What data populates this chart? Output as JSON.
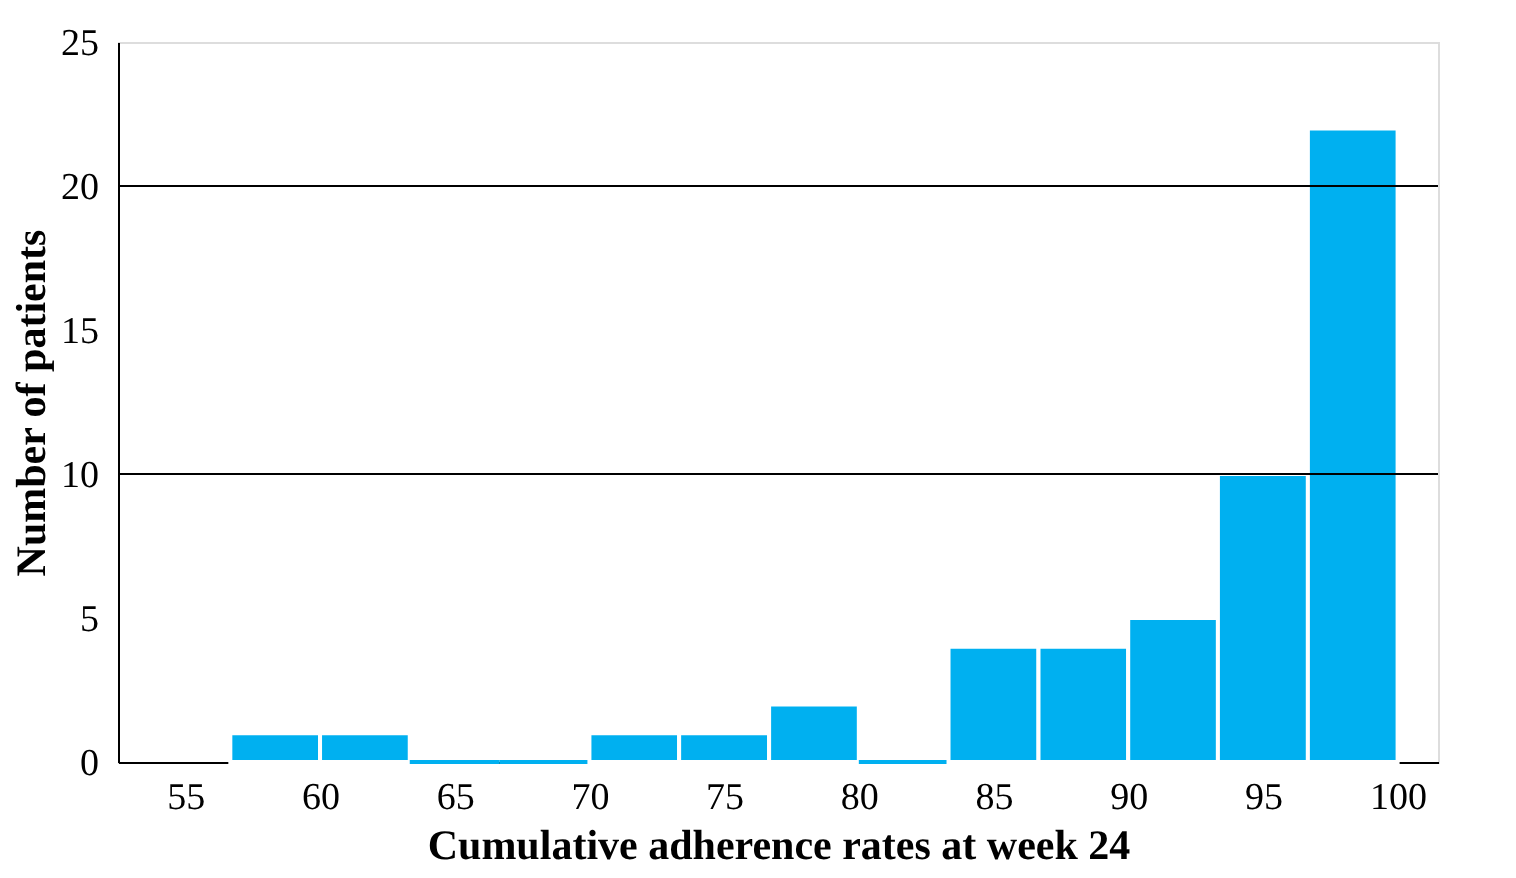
{
  "chart_data": {
    "type": "histogram",
    "xlabel": "Cumulative adherence rates at week 24",
    "ylabel": "Number of patients",
    "bins": [
      56.67,
      60,
      63.33,
      66.67,
      70,
      73.33,
      76.67,
      80,
      83.33,
      86.67,
      90,
      93.33,
      96.67,
      100
    ],
    "values": [
      1,
      1,
      0,
      0,
      1,
      1,
      2,
      0,
      4,
      4,
      5,
      10,
      22
    ],
    "color": "#00b0f0",
    "xlim": [
      52.5,
      101.5
    ],
    "xticks": [
      55,
      60,
      65,
      70,
      75,
      80,
      85,
      90,
      95,
      100
    ],
    "ylim": [
      0,
      25
    ],
    "yticks": [
      0,
      5,
      10,
      15,
      20,
      25
    ],
    "ref_lines": [
      {
        "axis": "y",
        "value": 10,
        "color": "#000000"
      },
      {
        "axis": "y",
        "value": 20,
        "color": "#000000"
      }
    ],
    "grid": false
  }
}
